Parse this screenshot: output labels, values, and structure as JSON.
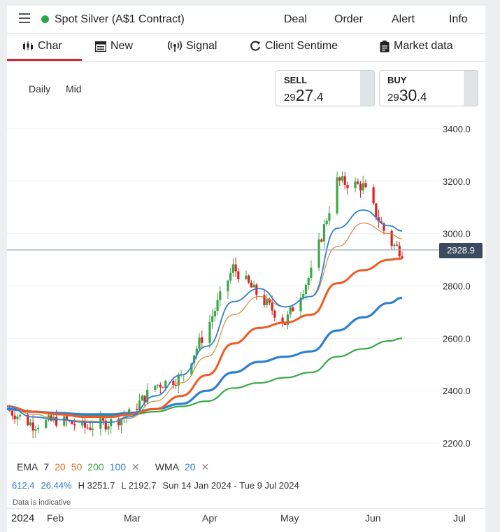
{
  "header": {
    "title": "Spot Silver (A$1 Contract)",
    "status_color": "#27a844",
    "links": [
      "Deal",
      "Order",
      "Alert",
      "Info"
    ]
  },
  "tabs": [
    {
      "label": "Char",
      "icon": "candles-icon",
      "active": true
    },
    {
      "label": "New",
      "icon": "newspaper-icon"
    },
    {
      "label": "Signal",
      "icon": "broadcast-icon"
    },
    {
      "label": "Client Sentime",
      "icon": "refresh-icon"
    },
    {
      "label": "Market data",
      "icon": "clipboard-icon"
    }
  ],
  "timeframe": {
    "interval": "Daily",
    "price_type": "Mid"
  },
  "sell": {
    "label": "SELL",
    "prefix": "29",
    "big": "27",
    "decimal": ".4"
  },
  "buy": {
    "label": "BUY",
    "prefix": "29",
    "big": "30",
    "decimal": ".4"
  },
  "current_price": "2928.9",
  "legend": {
    "ema_label": "EMA",
    "ema_periods": [
      {
        "value": "7",
        "color": "#2a3a6a"
      },
      {
        "value": "20",
        "color": "#e8702a"
      },
      {
        "value": "50",
        "color": "#e8702a"
      },
      {
        "value": "200",
        "color": "#3aa845"
      },
      {
        "value": "100",
        "color": "#2f7fd1"
      }
    ],
    "wma_label": "WMA",
    "wma_period": "20"
  },
  "stats": {
    "change": "612.4",
    "change_pct": "26.44%",
    "high": "H 3251.7",
    "low": "L 2192.7",
    "range": "Sun 14 Jan 2024 - Tue 9 Jul 2024"
  },
  "notice": "Data is indicative",
  "colors": {
    "up": "#3aa845",
    "down": "#e02020",
    "accent": "#d9232e"
  },
  "chart_data": {
    "type": "line",
    "title": "",
    "xlabel": "",
    "ylabel": "",
    "ylim": [
      2160,
      3440
    ],
    "y_ticks": [
      "3400.0",
      "3200.0",
      "3000.0",
      "2800.0",
      "2600.0",
      "2400.0",
      "2200.0"
    ],
    "x_ticks": [
      "2024",
      "Feb",
      "Mar",
      "Apr",
      "May",
      "Jun",
      "Jul"
    ],
    "x": [
      "2024-01-14",
      "2024-01-24",
      "2024-02-03",
      "2024-02-13",
      "2024-02-23",
      "2024-03-01",
      "2024-03-11",
      "2024-03-21",
      "2024-03-31",
      "2024-04-10",
      "2024-04-20",
      "2024-04-30",
      "2024-05-10",
      "2024-05-20",
      "2024-05-30",
      "2024-06-09",
      "2024-06-14"
    ],
    "series": [
      {
        "name": "Price",
        "values": [
          2330,
          2270,
          2290,
          2260,
          2280,
          2310,
          2420,
          2450,
          2640,
          2870,
          2760,
          2660,
          2850,
          3200,
          3180,
          2970,
          2930
        ]
      },
      {
        "name": "WMA 20",
        "values": [
          2340,
          2300,
          2290,
          2280,
          2280,
          2300,
          2380,
          2460,
          2570,
          2740,
          2790,
          2720,
          2760,
          3020,
          3090,
          3030,
          3010
        ]
      },
      {
        "name": "EMA 20",
        "values": [
          2340,
          2310,
          2290,
          2285,
          2280,
          2295,
          2360,
          2430,
          2530,
          2690,
          2760,
          2720,
          2760,
          2950,
          3040,
          3000,
          2980
        ]
      },
      {
        "name": "EMA 50",
        "values": [
          2340,
          2320,
          2310,
          2300,
          2300,
          2310,
          2330,
          2380,
          2460,
          2580,
          2640,
          2660,
          2690,
          2810,
          2860,
          2900,
          2905
        ]
      },
      {
        "name": "EMA 100",
        "values": [
          2330,
          2320,
          2315,
          2310,
          2310,
          2315,
          2330,
          2350,
          2400,
          2470,
          2510,
          2530,
          2550,
          2630,
          2680,
          2735,
          2755
        ]
      },
      {
        "name": "EMA 200",
        "values": [
          2330,
          2320,
          2310,
          2305,
          2305,
          2308,
          2320,
          2340,
          2360,
          2410,
          2430,
          2450,
          2470,
          2530,
          2560,
          2590,
          2600
        ]
      }
    ]
  }
}
